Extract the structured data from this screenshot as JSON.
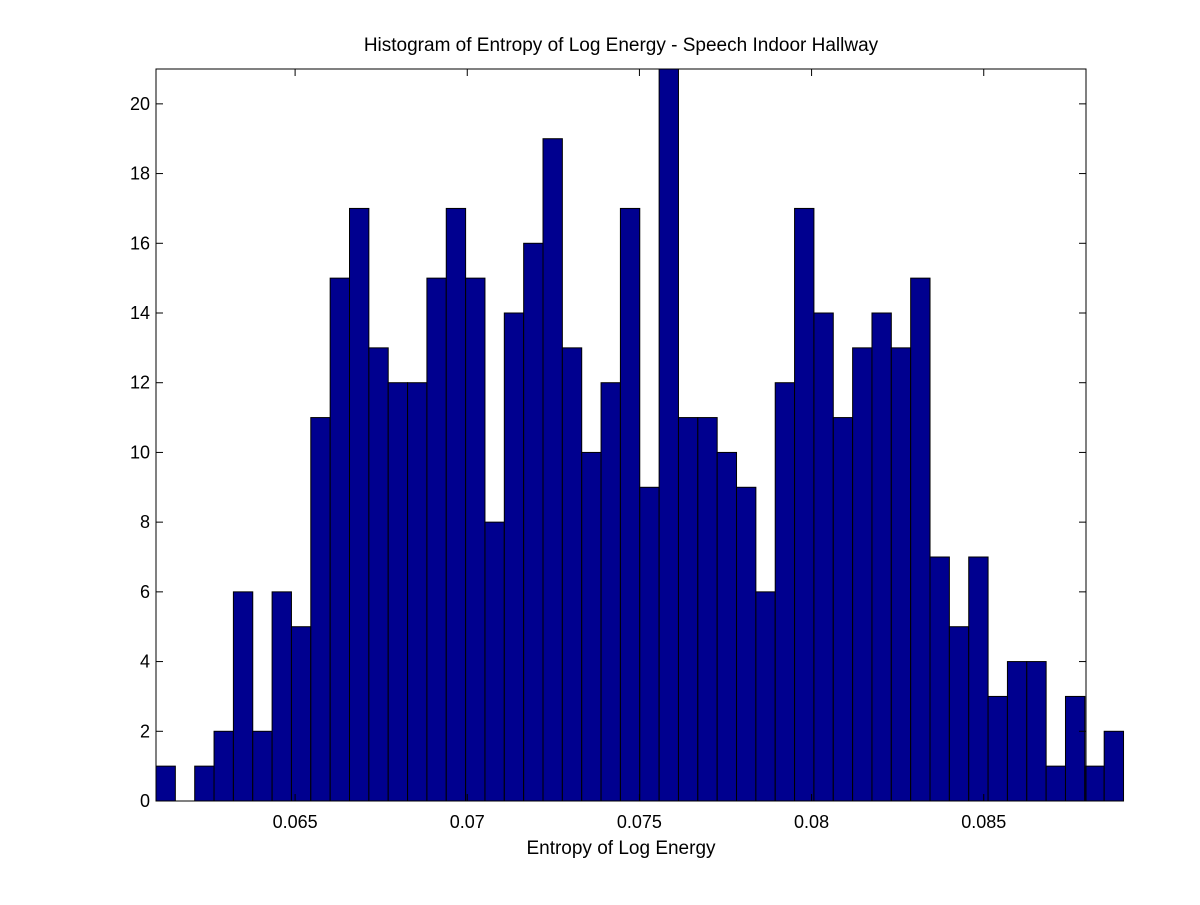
{
  "chart_data": {
    "type": "bar",
    "title": "Histogram of Entropy of Log Energy - Speech Indoor Hallway",
    "xlabel": "Entropy of Log Energy",
    "ylabel": "",
    "xlim": [
      0.06096,
      0.08797
    ],
    "ylim": [
      0,
      21
    ],
    "bin_start": 0.06096,
    "bin_width": 0.000562,
    "values": [
      1,
      0,
      1,
      2,
      6,
      2,
      6,
      5,
      11,
      15,
      17,
      13,
      12,
      12,
      15,
      17,
      15,
      8,
      14,
      16,
      19,
      13,
      10,
      12,
      17,
      9,
      21,
      11,
      11,
      10,
      9,
      6,
      12,
      17,
      14,
      11,
      13,
      14,
      13,
      15,
      7,
      5,
      7,
      3,
      4,
      4,
      1,
      3,
      1,
      2
    ],
    "xticks": [
      0.065,
      0.07,
      0.075,
      0.08,
      0.085
    ],
    "xtick_labels": [
      "0.065",
      "0.07",
      "0.075",
      "0.08",
      "0.085"
    ],
    "yticks": [
      0,
      2,
      4,
      6,
      8,
      10,
      12,
      14,
      16,
      18,
      20
    ],
    "ytick_labels": [
      "0",
      "2",
      "4",
      "6",
      "8",
      "10",
      "12",
      "14",
      "16",
      "18",
      "20"
    ],
    "grid": false,
    "bar_color": "#00008f",
    "edge_color": "#000000"
  }
}
